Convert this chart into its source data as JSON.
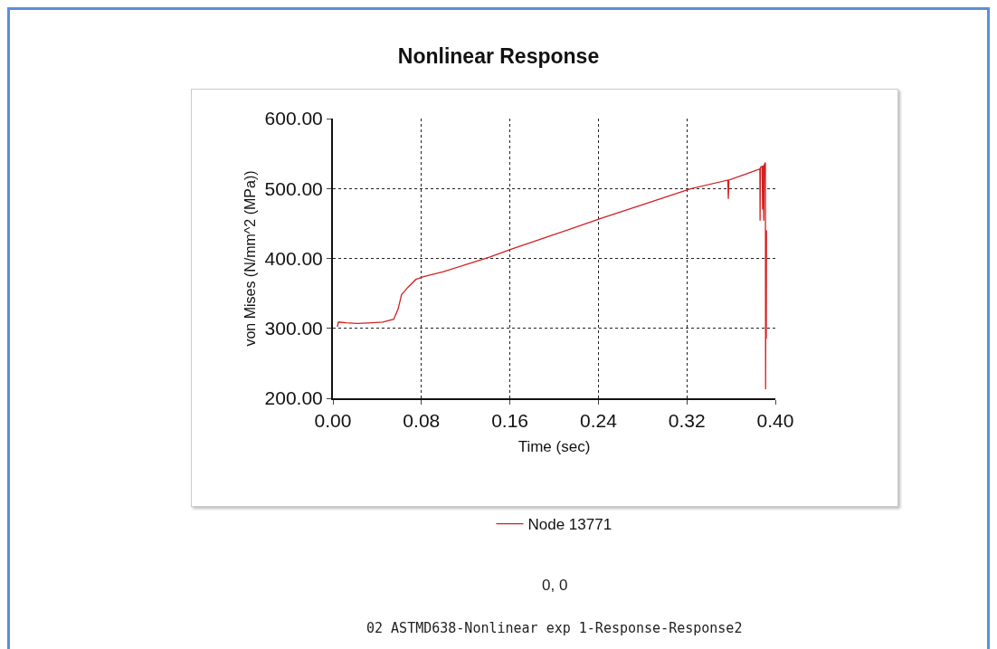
{
  "chart_data": {
    "type": "line",
    "title": "Nonlinear Response",
    "xlabel": "Time (sec)",
    "ylabel": "von Mises (N/mm^2 (MPa))",
    "x": [
      0.004,
      0.005,
      0.012,
      0.022,
      0.035,
      0.045,
      0.055,
      0.059,
      0.062,
      0.068,
      0.075,
      0.082,
      0.1,
      0.12,
      0.142,
      0.161,
      0.2,
      0.242,
      0.28,
      0.322,
      0.357,
      0.3575,
      0.358,
      0.372,
      0.386,
      0.3862,
      0.3865,
      0.388,
      0.3885,
      0.389,
      0.3895,
      0.39,
      0.391,
      0.3912,
      0.3915,
      0.3918,
      0.392
    ],
    "series": [
      {
        "name": "Node 13771",
        "color": "#d42020",
        "values": [
          302,
          309,
          308,
          307,
          308,
          309,
          313,
          328,
          348,
          359,
          370,
          374,
          381,
          391,
          402,
          413,
          434,
          457,
          477,
          499,
          512,
          485,
          512,
          520,
          528,
          454,
          530,
          532,
          470,
          533,
          454,
          534,
          537,
          213,
          440,
          285,
          440
        ]
      }
    ],
    "xlim": [
      0,
      0.4
    ],
    "xticks": [
      {
        "value": 0,
        "label": "0.00"
      },
      {
        "value": 0.08,
        "label": "0.08"
      },
      {
        "value": 0.16,
        "label": "0.16"
      },
      {
        "value": 0.24,
        "label": "0.24"
      },
      {
        "value": 0.32,
        "label": "0.32"
      },
      {
        "value": 0.4,
        "label": "0.40"
      }
    ],
    "ylim": [
      200,
      600
    ],
    "yticks": [
      {
        "value": 200,
        "label": "200.00"
      },
      {
        "value": 300,
        "label": "300.00"
      },
      {
        "value": 400,
        "label": "400.00"
      },
      {
        "value": 500,
        "label": "500.00"
      },
      {
        "value": 600,
        "label": "600.00"
      }
    ],
    "grid": true,
    "legend": "bottom",
    "marker": "none",
    "line_style": "solid",
    "annotations": [
      "0, 0",
      "02 ASTMD638-Nonlinear exp 1-Response-Response2"
    ]
  }
}
